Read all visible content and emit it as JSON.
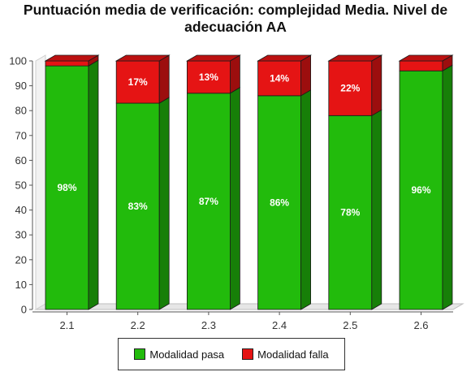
{
  "chart_data": {
    "type": "bar",
    "stacked": true,
    "title": "Puntuación media de verificación: complejidad Media. Nivel de adecuación AA",
    "categories": [
      "2.1",
      "2.2",
      "2.3",
      "2.4",
      "2.5",
      "2.6"
    ],
    "series": [
      {
        "name": "Modalidad pasa",
        "values": [
          98,
          83,
          87,
          86,
          78,
          96
        ],
        "labels": [
          "98%",
          "83%",
          "87%",
          "86%",
          "78%",
          "96%"
        ],
        "color": "#22bb0c"
      },
      {
        "name": "Modalidad falla",
        "values": [
          2,
          17,
          13,
          14,
          22,
          4
        ],
        "labels": [
          "",
          "17%",
          "13%",
          "14%",
          "22%",
          ""
        ],
        "color": "#e51414"
      }
    ],
    "ylim": [
      0,
      100
    ],
    "yticks": [
      "0",
      "10",
      "20",
      "30",
      "40",
      "50",
      "60",
      "70",
      "80",
      "90",
      "100"
    ],
    "xlabel": "",
    "ylabel": "",
    "grid": false,
    "legend_position": "bottom"
  },
  "legend": [
    {
      "label": "Modalidad pasa",
      "color": "#22bb0c"
    },
    {
      "label": "Modalidad falla",
      "color": "#e51414"
    }
  ]
}
